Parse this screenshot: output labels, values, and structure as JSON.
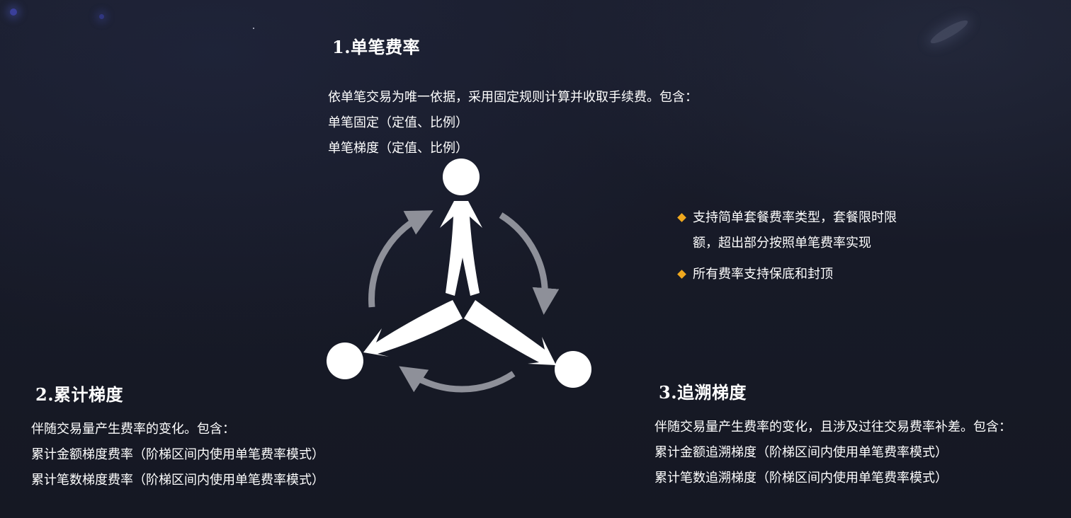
{
  "sections": {
    "single": {
      "title": "1.单笔费率",
      "lines": [
        "依单笔交易为唯一依据，采用固定规则计算并收取手续费。包含：",
        "单笔固定（定值、比例）",
        "单笔梯度（定值、比例）"
      ]
    },
    "cumulative": {
      "title": "2.累计梯度",
      "lines": [
        "伴随交易量产生费率的变化。包含：",
        "累计金额梯度费率（阶梯区间内使用单笔费率模式）",
        "累计笔数梯度费率（阶梯区间内使用单笔费率模式）"
      ]
    },
    "retroactive": {
      "title": "3.追溯梯度",
      "lines": [
        "伴随交易量产生费率的变化，且涉及过往交易费率补差。包含：",
        "累计金额追溯梯度（阶梯区间内使用单笔费率模式）",
        "累计笔数追溯梯度（阶梯区间内使用单笔费率模式）"
      ]
    }
  },
  "features": [
    {
      "line1": "支持简单套餐费率类型，套餐限时限",
      "line2": "额，超出部分按照单笔费率实现"
    },
    {
      "line1": "所有费率支持保底和封顶",
      "line2": ""
    }
  ],
  "colors": {
    "background": "#171a27",
    "text": "#ffffff",
    "bullet": "#f0a81e",
    "arrows": "#8e9099"
  },
  "icons": [
    "diamond-bullet-icon",
    "three-person-cycle-icon",
    "circular-arrow-icon"
  ]
}
